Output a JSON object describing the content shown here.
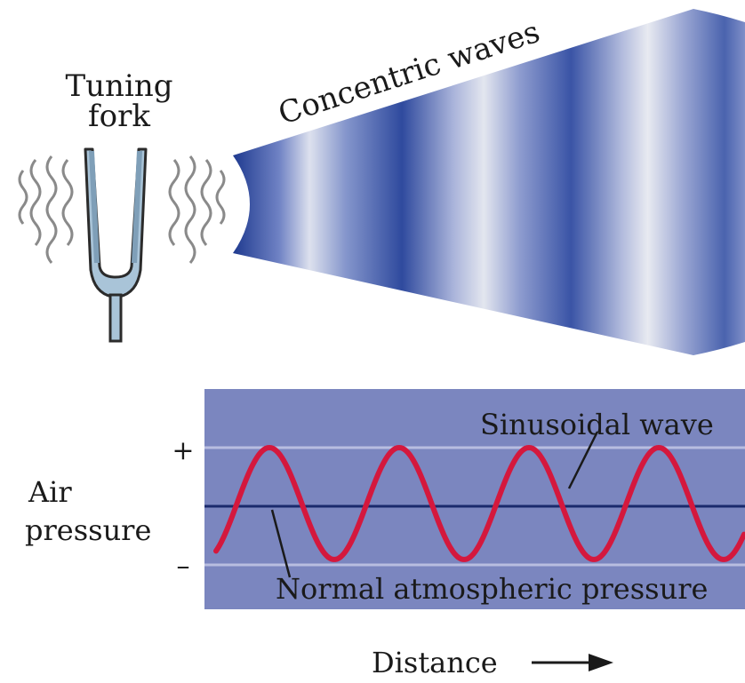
{
  "top": {
    "fork_label_line1": "Tuning",
    "fork_label_line2": "fork",
    "waves_label": "Concentric waves"
  },
  "bottom": {
    "ylabel_line1": "Air",
    "ylabel_line2": "pressure",
    "plus_sign": "+",
    "minus_sign": "–",
    "wave_label": "Sinusoidal wave",
    "baseline_label": "Normal atmospheric pressure",
    "xlabel": "Distance"
  },
  "colors": {
    "wave": "#d4183d",
    "baseline": "#1a2a6c",
    "panel": "#7b86bf",
    "panel_line": "#b8bde0",
    "cone_dark": "#1f3a8f",
    "cone_light": "#e6e8ef",
    "fork_fill": "#a9c4d8",
    "fork_stroke": "#2b2b2b"
  }
}
